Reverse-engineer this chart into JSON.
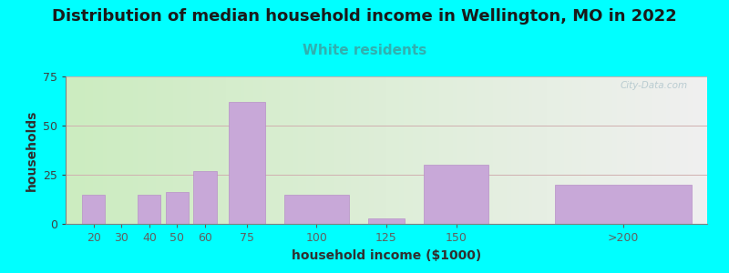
{
  "title": "Distribution of median household income in Wellington, MO in 2022",
  "subtitle": "White residents",
  "xlabel": "household income ($1000)",
  "ylabel": "households",
  "background_color": "#00FFFF",
  "bar_color": "#c8a8d8",
  "bar_edge_color": "#b890c8",
  "values": [
    15,
    0,
    15,
    16,
    27,
    62,
    15,
    3,
    30,
    20
  ],
  "bar_centers": [
    20,
    30,
    40,
    50,
    60,
    75,
    100,
    125,
    150,
    210
  ],
  "bar_widths": [
    9,
    9,
    9,
    9,
    9,
    14,
    24,
    14,
    24,
    50
  ],
  "ylim": [
    0,
    75
  ],
  "yticks": [
    0,
    25,
    50,
    75
  ],
  "xtick_positions": [
    20,
    30,
    40,
    50,
    60,
    75,
    100,
    125,
    150,
    210
  ],
  "xtick_labels": [
    "20",
    "30",
    "40",
    "50",
    "60",
    "75",
    "100",
    "125",
    "150",
    ">200"
  ],
  "xlim": [
    10,
    240
  ],
  "title_fontsize": 13,
  "subtitle_fontsize": 11,
  "subtitle_color": "#30b0b0",
  "title_color": "#1a1a1a",
  "axis_label_fontsize": 10,
  "tick_fontsize": 9,
  "watermark": "City-Data.com",
  "grid_color": "#d0b0b0",
  "plot_bg_left": "#ccecc0",
  "plot_bg_right": "#f0f0f0"
}
